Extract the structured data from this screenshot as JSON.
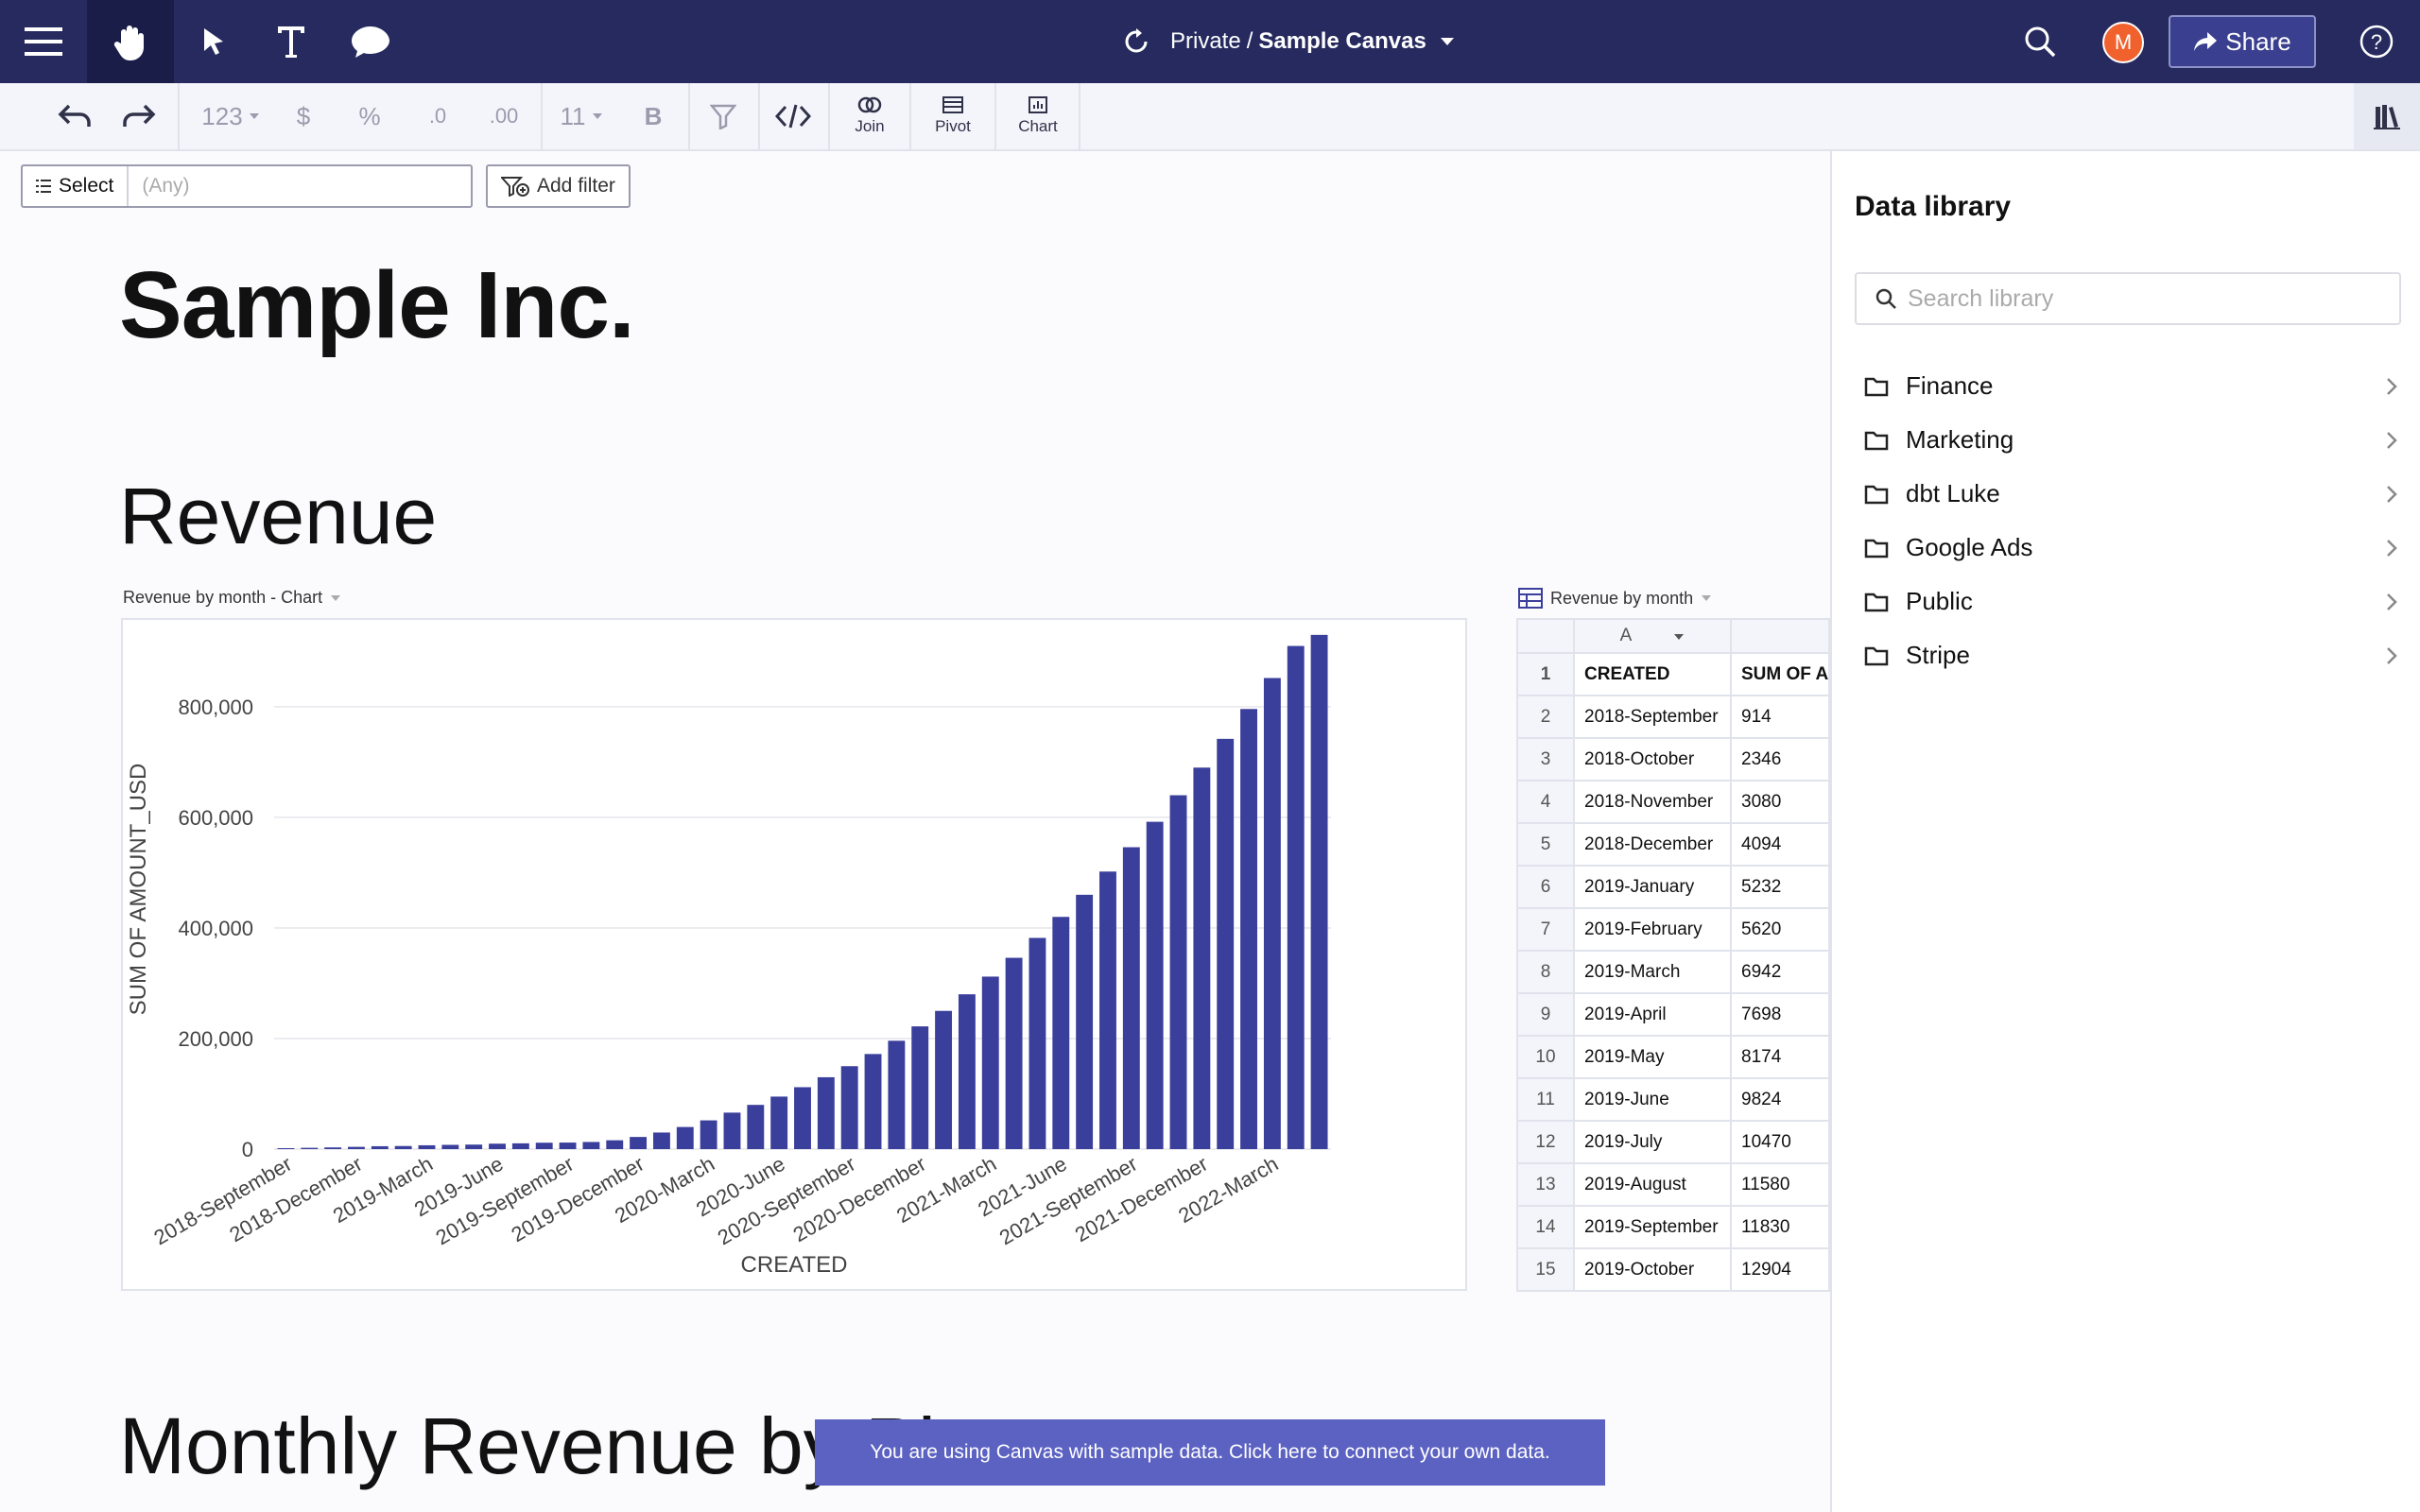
{
  "topbar": {
    "breadcrumb_root": "Private",
    "breadcrumb_sep": "/",
    "canvas_name": "Sample Canvas",
    "avatar_initial": "M",
    "share_label": "Share"
  },
  "toolbar": {
    "number_format": "123",
    "currency": "$",
    "percent": "%",
    "dec_less": ".0",
    "dec_more": ".00",
    "font_size": "11",
    "bold": "B",
    "join_label": "Join",
    "pivot_label": "Pivot",
    "chart_label": "Chart"
  },
  "filter": {
    "select_label": "Select",
    "select_value": "(Any)",
    "add_filter_label": "Add filter"
  },
  "page": {
    "company_title": "Sample Inc.",
    "section1": "Revenue",
    "section2": "Monthly Revenue by Pl"
  },
  "chart_panel": {
    "title": "Revenue by month - Chart"
  },
  "chart_data": {
    "type": "bar",
    "xlabel": "CREATED",
    "ylabel": "SUM OF AMOUNT_USD",
    "ylim": [
      0,
      940000
    ],
    "yticks": [
      "0",
      "200,000",
      "400,000",
      "600,000",
      "800,000"
    ],
    "ytick_values": [
      0,
      200000,
      400000,
      600000,
      800000
    ],
    "grid": true,
    "color": "#3b3f9c",
    "tick_labels": [
      {
        "index": 0,
        "label": "2018-September"
      },
      {
        "index": 3,
        "label": "2018-December"
      },
      {
        "index": 6,
        "label": "2019-March"
      },
      {
        "index": 9,
        "label": "2019-June"
      },
      {
        "index": 12,
        "label": "2019-September"
      },
      {
        "index": 15,
        "label": "2019-December"
      },
      {
        "index": 18,
        "label": "2020-March"
      },
      {
        "index": 21,
        "label": "2020-June"
      },
      {
        "index": 24,
        "label": "2020-September"
      },
      {
        "index": 27,
        "label": "2020-December"
      },
      {
        "index": 30,
        "label": "2021-March"
      },
      {
        "index": 33,
        "label": "2021-June"
      },
      {
        "index": 36,
        "label": "2021-September"
      },
      {
        "index": 39,
        "label": "2021-December"
      },
      {
        "index": 42,
        "label": "2022-March"
      }
    ],
    "values": [
      914,
      2346,
      3080,
      4094,
      5232,
      5620,
      6942,
      7698,
      8174,
      9824,
      10470,
      11580,
      11830,
      12904,
      16000,
      22000,
      30000,
      40000,
      52000,
      66000,
      80000,
      95000,
      112000,
      130000,
      150000,
      172000,
      196000,
      222000,
      250000,
      280000,
      312000,
      346000,
      382000,
      420000,
      460000,
      502000,
      546000,
      592000,
      640000,
      690000,
      742000,
      796000,
      852000,
      910000,
      930000
    ]
  },
  "table_panel": {
    "title": "Revenue by month",
    "col_letter": "A",
    "headers": [
      "CREATED",
      "SUM OF AMOUNT_USD"
    ],
    "rows": [
      {
        "n": "2",
        "created": "2018-September",
        "sum": "914"
      },
      {
        "n": "3",
        "created": "2018-October",
        "sum": "2346"
      },
      {
        "n": "4",
        "created": "2018-November",
        "sum": "3080"
      },
      {
        "n": "5",
        "created": "2018-December",
        "sum": "4094"
      },
      {
        "n": "6",
        "created": "2019-January",
        "sum": "5232"
      },
      {
        "n": "7",
        "created": "2019-February",
        "sum": "5620"
      },
      {
        "n": "8",
        "created": "2019-March",
        "sum": "6942"
      },
      {
        "n": "9",
        "created": "2019-April",
        "sum": "7698"
      },
      {
        "n": "10",
        "created": "2019-May",
        "sum": "8174"
      },
      {
        "n": "11",
        "created": "2019-June",
        "sum": "9824"
      },
      {
        "n": "12",
        "created": "2019-July",
        "sum": "10470"
      },
      {
        "n": "13",
        "created": "2019-August",
        "sum": "11580"
      },
      {
        "n": "14",
        "created": "2019-September",
        "sum": "11830"
      },
      {
        "n": "15",
        "created": "2019-October",
        "sum": "12904"
      }
    ]
  },
  "banner": {
    "text": "You are using Canvas with sample data. Click here to connect your own data."
  },
  "library": {
    "title": "Data library",
    "search_placeholder": "Search library",
    "folders": [
      "Finance",
      "Marketing",
      "dbt Luke",
      "Google Ads",
      "Public",
      "Stripe"
    ]
  }
}
